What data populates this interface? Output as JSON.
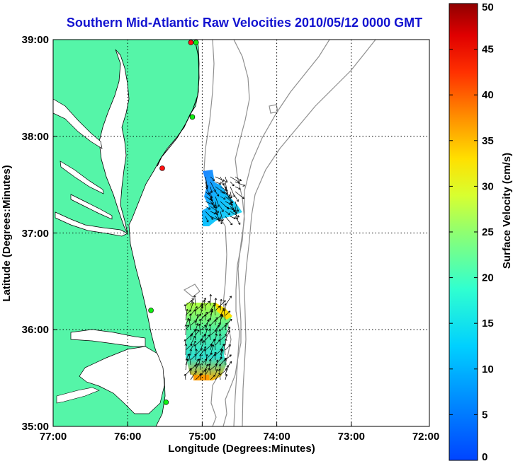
{
  "title": "Southern Mid-Atlantic Raw Velocities 2010/05/12 0000 GMT",
  "xlabel": "Longitude (Degrees:Minutes)",
  "ylabel": "Latitude (Degrees:Minutes)",
  "x_ticks": [
    "77:00",
    "76:00",
    "75:00",
    "74:00",
    "73:00",
    "72:00"
  ],
  "y_ticks": [
    "39:00",
    "38:00",
    "37:00",
    "36:00",
    "35:00"
  ],
  "colorbar": {
    "label": "Surface Velocity (cm/s)",
    "ticks": [
      "0",
      "5",
      "10",
      "15",
      "20",
      "25",
      "30",
      "35",
      "40",
      "45",
      "50"
    ],
    "range": [
      0,
      50
    ]
  },
  "chart_data": {
    "type": "map",
    "x_range": [
      -77,
      -72
    ],
    "y_range": [
      35,
      39
    ],
    "grid": true,
    "land_color": "#55f5a8",
    "stations": [
      {
        "lon": -75.17,
        "lat": 38.97,
        "color": "#ff1010"
      },
      {
        "lon": -75.1,
        "lat": 38.97,
        "color": "#10ee10"
      },
      {
        "lon": -75.15,
        "lat": 38.2,
        "color": "#10ee10"
      },
      {
        "lon": -75.55,
        "lat": 37.67,
        "color": "#ff1010"
      },
      {
        "lon": -75.7,
        "lat": 36.2,
        "color": "#10ee10"
      },
      {
        "lon": -75.5,
        "lat": 35.25,
        "color": "#10ee10"
      }
    ],
    "velocity_patches": [
      {
        "region": "north",
        "lon_range": [
          -75.0,
          -74.55
        ],
        "lat_range": [
          37.1,
          37.6
        ],
        "speed_range": [
          8,
          14
        ]
      },
      {
        "region": "south",
        "lon_range": [
          -75.2,
          -74.6
        ],
        "lat_range": [
          35.5,
          36.3
        ],
        "speed_range": [
          10,
          35
        ]
      }
    ]
  }
}
